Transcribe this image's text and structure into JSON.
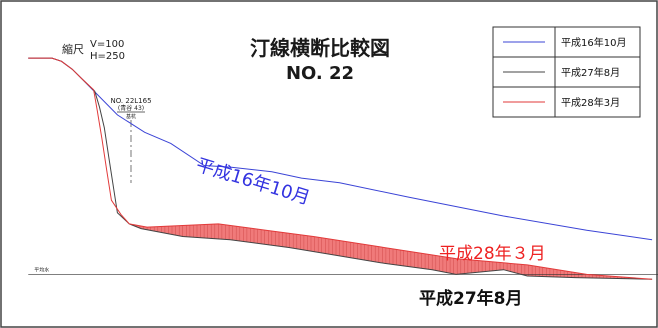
{
  "chart_data": {
    "type": "line",
    "title": "汀線横断比較図",
    "subtitle": "NO. 22",
    "scale": {
      "label": "縮尺",
      "v": "V=100",
      "h": "H=250"
    },
    "marker": {
      "label": "NO. 22L165",
      "sublabel": "(青谷 43)",
      "tag": "基杭"
    },
    "water_level_label": "平均水",
    "legend": [
      {
        "name": "平成16年10月",
        "color": "#3b44d6"
      },
      {
        "name": "平成27年8月",
        "color": "#444444"
      },
      {
        "name": "平成28年3月",
        "color": "#e23a3a"
      }
    ],
    "annotations": [
      {
        "text": "平成16年10月",
        "color": "#3333e0"
      },
      {
        "text": "平成28年３月",
        "color": "#ee2222"
      },
      {
        "text": "平成27年8月",
        "color": "#111111"
      }
    ],
    "series": [
      {
        "name": "平成16年10月",
        "x": [
          0,
          10,
          20,
          28,
          37,
          45,
          58,
          75,
          98,
          120,
          148,
          170,
          205,
          230,
          262,
          320,
          400,
          470,
          525
        ],
        "y": [
          82,
          82,
          82,
          80,
          75,
          69,
          59,
          46,
          35,
          28,
          14,
          13,
          10,
          6,
          3,
          -6,
          -18,
          -27,
          -33
        ]
      },
      {
        "name": "平成27年8月",
        "x": [
          0,
          10,
          20,
          28,
          37,
          45,
          56,
          60,
          64,
          68,
          75,
          85,
          95,
          130,
          170,
          220,
          260,
          300,
          340,
          360,
          400,
          420,
          460,
          525
        ],
        "y": [
          82,
          82,
          82,
          80,
          75,
          69,
          61,
          51,
          38,
          18,
          -16,
          -23,
          -26,
          -31,
          -33,
          -38,
          -43,
          -48,
          -52,
          -55,
          -52,
          -56,
          -57,
          -58
        ]
      },
      {
        "name": "平成28年3月",
        "x": [
          0,
          10,
          20,
          28,
          37,
          45,
          55,
          58,
          62,
          66,
          70,
          78,
          85,
          100,
          130,
          160,
          200,
          240,
          300,
          360,
          420,
          470,
          525
        ],
        "y": [
          82,
          82,
          82,
          80,
          75,
          69,
          62,
          49,
          31,
          11,
          -8,
          -17,
          -23,
          -25,
          -24,
          -23,
          -27,
          -31,
          -38,
          -45,
          -49,
          -55,
          -58
        ]
      }
    ],
    "water_level_y": -55,
    "xlim": [
      -12,
      530
    ],
    "ylim": [
      -75,
      115
    ]
  }
}
